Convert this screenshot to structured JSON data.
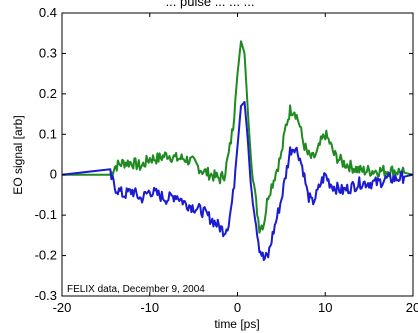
{
  "chart_data": {
    "type": "line",
    "title": "... pulse ... ... ...",
    "xlabel": "time [ps]",
    "ylabel": "EO signal [arb]",
    "annotation": "FELIX data, December 9, 2004",
    "xlim": [
      -20,
      20
    ],
    "ylim": [
      -0.3,
      0.4
    ],
    "xticks": [
      -20,
      -10,
      0,
      10,
      20
    ],
    "yticks": [
      -0.3,
      -0.2,
      -0.1,
      0,
      0.1,
      0.2,
      0.3,
      0.4
    ],
    "xtick_labels": [
      "-20",
      "-10",
      "0",
      "10",
      "20"
    ],
    "ytick_labels": [
      "-0.3",
      "-0.2",
      "-0.1",
      "0",
      "0.1",
      "0.2",
      "0.3",
      "0.4"
    ],
    "grid": false,
    "series": [
      {
        "color": "#1f8a1f",
        "x": [
          -20,
          -14.5,
          -14,
          -13,
          -12,
          -11,
          -10,
          -9,
          -8,
          -7,
          -6,
          -5,
          -4,
          -3,
          -2,
          -1.5,
          -1,
          -0.5,
          0,
          0.4,
          0.8,
          1.2,
          1.5,
          2,
          2.5,
          3,
          3.5,
          4,
          5,
          5.5,
          6,
          6.5,
          7,
          7.5,
          8,
          8.5,
          9,
          9.5,
          10,
          10.5,
          11,
          12,
          13,
          14,
          15,
          16,
          17,
          18,
          19,
          20
        ],
        "y": [
          0,
          0,
          0.02,
          0.03,
          0.03,
          0.02,
          0.04,
          0.04,
          0.05,
          0.04,
          0.04,
          0.03,
          0.01,
          0.0,
          -0.01,
          0.0,
          0.05,
          0.12,
          0.25,
          0.33,
          0.3,
          0.15,
          0.05,
          -0.05,
          -0.13,
          -0.12,
          -0.05,
          -0.02,
          0.05,
          0.12,
          0.16,
          0.16,
          0.13,
          0.08,
          0.05,
          0.04,
          0.05,
          0.08,
          0.1,
          0.08,
          0.05,
          0.03,
          0.02,
          0.01,
          0.01,
          0.01,
          0.01,
          0.01,
          0.005,
          0
        ]
      },
      {
        "color": "#1b1bd0",
        "x": [
          -20,
          -14.5,
          -14,
          -13,
          -12,
          -11,
          -10,
          -9,
          -8,
          -7,
          -6,
          -5,
          -4,
          -3,
          -2,
          -1.5,
          -1,
          -0.5,
          0,
          0.4,
          0.8,
          1.2,
          1.5,
          2,
          2.5,
          3,
          3.5,
          4,
          5,
          5.5,
          6,
          6.5,
          7,
          7.5,
          8,
          8.5,
          9,
          9.5,
          10,
          10.5,
          11,
          12,
          13,
          14,
          15,
          16,
          17,
          18,
          19,
          20
        ],
        "y": [
          0,
          0,
          -0.03,
          -0.05,
          -0.04,
          -0.06,
          -0.04,
          -0.05,
          -0.06,
          -0.05,
          -0.07,
          -0.08,
          -0.09,
          -0.11,
          -0.13,
          -0.14,
          -0.12,
          -0.05,
          0.07,
          0.17,
          0.18,
          0.08,
          -0.02,
          -0.1,
          -0.18,
          -0.21,
          -0.2,
          -0.15,
          -0.06,
          0.0,
          0.06,
          0.07,
          0.05,
          0.01,
          -0.05,
          -0.07,
          -0.05,
          -0.02,
          0.0,
          -0.02,
          -0.03,
          -0.04,
          -0.03,
          -0.02,
          -0.02,
          -0.02,
          -0.01,
          -0.01,
          -0.005,
          0
        ]
      }
    ]
  }
}
